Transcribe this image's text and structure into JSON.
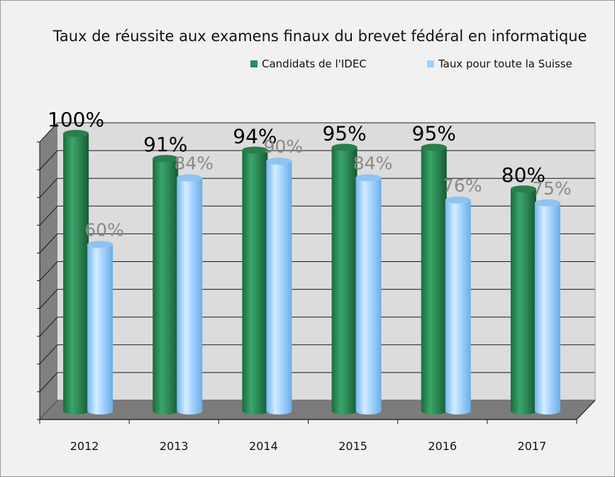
{
  "chart_data": {
    "type": "bar",
    "title": "Taux de réussite aux examens finaux du brevet fédéral en informatique",
    "categories": [
      "2012",
      "2013",
      "2014",
      "2015",
      "2016",
      "2017"
    ],
    "series": [
      {
        "name": "Candidats de l'IDEC",
        "values": [
          100,
          91,
          94,
          95,
          95,
          80
        ],
        "labels": [
          "100%",
          "91%",
          "94%",
          "95%",
          "95%",
          "80%"
        ],
        "color": "#2e8b57"
      },
      {
        "name": "Taux pour toute la Suisse",
        "values": [
          60,
          84,
          90,
          84,
          76,
          75
        ],
        "labels": [
          "60%",
          "84%",
          "90%",
          "84%",
          "76%",
          "75%"
        ],
        "color": "#9fd0ff"
      }
    ],
    "ylim": [
      0,
      100
    ],
    "grid": true,
    "legend_position": "top-right",
    "style": "3d-cylinder"
  },
  "colors": {
    "plot_back_wall": "#dcdcdc",
    "plot_side_wall": "#808080",
    "plot_floor": "#7b7b7b",
    "label_idec": "#000000",
    "label_suisse": "#8a8a8a"
  }
}
